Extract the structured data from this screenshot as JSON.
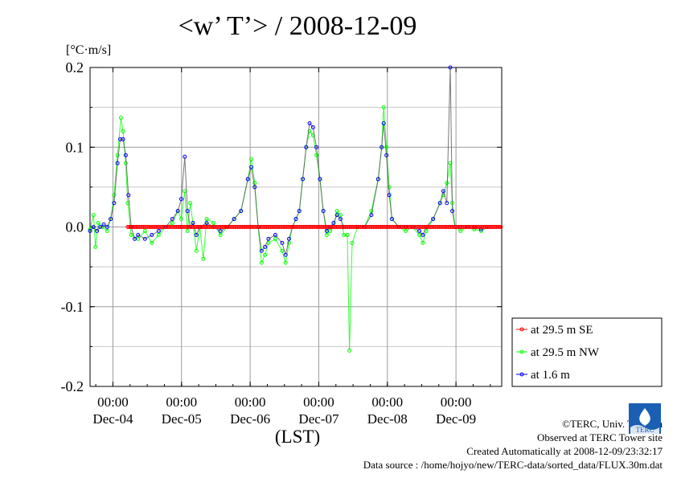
{
  "title": "<w’ T’> / 2008-12-09",
  "chart_data": {
    "type": "line",
    "ylabel": "[°C·m/s]",
    "xlabel": "(LST)",
    "ylim": [
      -0.2,
      0.2
    ],
    "xlim_days": [
      0,
      6
    ],
    "x_start": "2008-12-03 16:00",
    "x_end": "2008-12-09 23:59",
    "yticks": [
      "0.2",
      "0.1",
      "0.0",
      "-0.1",
      "-0.2"
    ],
    "xticks": [
      {
        "time": "00:00",
        "date": "Dec-04"
      },
      {
        "time": "00:00",
        "date": "Dec-05"
      },
      {
        "time": "00:00",
        "date": "Dec-06"
      },
      {
        "time": "00:00",
        "date": "Dec-07"
      },
      {
        "time": "00:00",
        "date": "Dec-08"
      },
      {
        "time": "00:00",
        "date": "Dec-09"
      }
    ],
    "grid": true,
    "legend_position": "bottom-right outside",
    "series": [
      {
        "name": "at 29.5 m SE",
        "color": "#ff0000",
        "note": "flat near zero from Dec-04 06:00 onward",
        "points": [
          [
            0.55,
            0
          ],
          [
            6.0,
            0
          ]
        ]
      },
      {
        "name": "at 29.5 m NW",
        "color": "#00ff00",
        "points": [
          [
            0.0,
            -0.003
          ],
          [
            0.05,
            0.015
          ],
          [
            0.08,
            -0.025
          ],
          [
            0.12,
            0.005
          ],
          [
            0.18,
            0.0
          ],
          [
            0.25,
            -0.005
          ],
          [
            0.3,
            0.01
          ],
          [
            0.35,
            0.04
          ],
          [
            0.4,
            0.09
          ],
          [
            0.45,
            0.137
          ],
          [
            0.48,
            0.12
          ],
          [
            0.52,
            0.08
          ],
          [
            0.55,
            0.03
          ],
          [
            0.6,
            -0.01
          ],
          [
            0.7,
            -0.015
          ],
          [
            0.8,
            -0.005
          ],
          [
            0.9,
            -0.02
          ],
          [
            1.0,
            -0.01
          ],
          [
            1.1,
            0.0
          ],
          [
            1.2,
            0.005
          ],
          [
            1.28,
            0.02
          ],
          [
            1.33,
            0.01
          ],
          [
            1.38,
            0.045
          ],
          [
            1.42,
            -0.005
          ],
          [
            1.46,
            0.03
          ],
          [
            1.5,
            0.005
          ],
          [
            1.55,
            -0.03
          ],
          [
            1.6,
            0.0
          ],
          [
            1.65,
            -0.04
          ],
          [
            1.7,
            0.01
          ],
          [
            1.8,
            0.005
          ],
          [
            1.9,
            -0.01
          ],
          [
            2.0,
            0.0
          ],
          [
            2.1,
            0.01
          ],
          [
            2.2,
            0.02
          ],
          [
            2.3,
            0.06
          ],
          [
            2.35,
            0.085
          ],
          [
            2.4,
            0.055
          ],
          [
            2.45,
            0.0
          ],
          [
            2.5,
            -0.045
          ],
          [
            2.55,
            -0.035
          ],
          [
            2.6,
            -0.02
          ],
          [
            2.7,
            -0.015
          ],
          [
            2.8,
            -0.03
          ],
          [
            2.85,
            -0.045
          ],
          [
            2.9,
            -0.02
          ],
          [
            2.95,
            0.0
          ],
          [
            3.0,
            0.01
          ],
          [
            3.05,
            0.02
          ],
          [
            3.1,
            0.06
          ],
          [
            3.15,
            0.1
          ],
          [
            3.2,
            0.12
          ],
          [
            3.25,
            0.115
          ],
          [
            3.3,
            0.09
          ],
          [
            3.35,
            0.06
          ],
          [
            3.4,
            0.02
          ],
          [
            3.45,
            -0.01
          ],
          [
            3.5,
            -0.005
          ],
          [
            3.55,
            0.0
          ],
          [
            3.6,
            0.02
          ],
          [
            3.65,
            0.015
          ],
          [
            3.7,
            -0.01
          ],
          [
            3.75,
            -0.01
          ],
          [
            3.78,
            -0.155
          ],
          [
            3.82,
            -0.02
          ],
          [
            3.9,
            0.0
          ],
          [
            4.0,
            0.0
          ],
          [
            4.1,
            0.02
          ],
          [
            4.2,
            0.06
          ],
          [
            4.25,
            0.1
          ],
          [
            4.28,
            0.15
          ],
          [
            4.32,
            0.1
          ],
          [
            4.36,
            0.05
          ],
          [
            4.4,
            0.01
          ],
          [
            4.5,
            0.0
          ],
          [
            4.6,
            -0.005
          ],
          [
            4.7,
            0.0
          ],
          [
            4.8,
            -0.01
          ],
          [
            4.85,
            -0.02
          ],
          [
            4.9,
            -0.005
          ],
          [
            5.0,
            0.01
          ],
          [
            5.1,
            0.03
          ],
          [
            5.15,
            0.04
          ],
          [
            5.2,
            0.055
          ],
          [
            5.25,
            0.08
          ],
          [
            5.28,
            0.03
          ],
          [
            5.32,
            0.0
          ],
          [
            5.4,
            -0.005
          ],
          [
            5.5,
            0.0
          ],
          [
            5.6,
            -0.003
          ],
          [
            5.7,
            -0.005
          ],
          [
            5.8,
            0.0
          ]
        ]
      },
      {
        "name": "at 1.6 m",
        "color": "#0000ff",
        "points": [
          [
            0.0,
            -0.005
          ],
          [
            0.05,
            0.0
          ],
          [
            0.1,
            -0.005
          ],
          [
            0.15,
            0.0
          ],
          [
            0.2,
            0.003
          ],
          [
            0.25,
            0.0
          ],
          [
            0.3,
            0.01
          ],
          [
            0.35,
            0.03
          ],
          [
            0.4,
            0.08
          ],
          [
            0.44,
            0.11
          ],
          [
            0.48,
            0.11
          ],
          [
            0.52,
            0.09
          ],
          [
            0.56,
            0.04
          ],
          [
            0.6,
            0.0
          ],
          [
            0.65,
            -0.015
          ],
          [
            0.7,
            -0.01
          ],
          [
            0.8,
            -0.015
          ],
          [
            0.9,
            -0.01
          ],
          [
            1.0,
            -0.005
          ],
          [
            1.1,
            0.0
          ],
          [
            1.2,
            0.01
          ],
          [
            1.28,
            0.02
          ],
          [
            1.33,
            0.035
          ],
          [
            1.38,
            0.088
          ],
          [
            1.42,
            0.02
          ],
          [
            1.46,
            0.0
          ],
          [
            1.5,
            0.005
          ],
          [
            1.55,
            -0.01
          ],
          [
            1.6,
            0.0
          ],
          [
            1.7,
            0.005
          ],
          [
            1.8,
            0.0
          ],
          [
            1.9,
            -0.005
          ],
          [
            2.0,
            0.0
          ],
          [
            2.1,
            0.01
          ],
          [
            2.2,
            0.02
          ],
          [
            2.3,
            0.06
          ],
          [
            2.35,
            0.075
          ],
          [
            2.4,
            0.05
          ],
          [
            2.45,
            0.0
          ],
          [
            2.5,
            -0.03
          ],
          [
            2.55,
            -0.025
          ],
          [
            2.6,
            -0.015
          ],
          [
            2.7,
            -0.01
          ],
          [
            2.8,
            -0.02
          ],
          [
            2.85,
            -0.035
          ],
          [
            2.9,
            -0.015
          ],
          [
            2.95,
            0.0
          ],
          [
            3.0,
            0.01
          ],
          [
            3.05,
            0.02
          ],
          [
            3.1,
            0.06
          ],
          [
            3.15,
            0.1
          ],
          [
            3.2,
            0.13
          ],
          [
            3.25,
            0.125
          ],
          [
            3.3,
            0.1
          ],
          [
            3.35,
            0.06
          ],
          [
            3.4,
            0.02
          ],
          [
            3.45,
            -0.005
          ],
          [
            3.5,
            0.0
          ],
          [
            3.55,
            0.005
          ],
          [
            3.6,
            0.015
          ],
          [
            3.65,
            0.01
          ],
          [
            3.7,
            0.0
          ],
          [
            3.8,
            0.0
          ],
          [
            3.9,
            0.0
          ],
          [
            4.0,
            0.0
          ],
          [
            4.1,
            0.015
          ],
          [
            4.2,
            0.06
          ],
          [
            4.25,
            0.1
          ],
          [
            4.28,
            0.13
          ],
          [
            4.32,
            0.09
          ],
          [
            4.36,
            0.04
          ],
          [
            4.4,
            0.01
          ],
          [
            4.5,
            0.0
          ],
          [
            4.6,
            0.0
          ],
          [
            4.7,
            0.0
          ],
          [
            4.8,
            -0.005
          ],
          [
            4.85,
            -0.01
          ],
          [
            4.9,
            0.0
          ],
          [
            5.0,
            0.01
          ],
          [
            5.1,
            0.03
          ],
          [
            5.15,
            0.045
          ],
          [
            5.2,
            0.03
          ],
          [
            5.25,
            0.2
          ],
          [
            5.28,
            0.02
          ],
          [
            5.32,
            0.0
          ],
          [
            5.4,
            0.0
          ],
          [
            5.5,
            0.0
          ],
          [
            5.6,
            0.0
          ],
          [
            5.7,
            -0.003
          ],
          [
            5.8,
            0.0
          ]
        ]
      }
    ]
  },
  "credits": {
    "copyright": "©TERC, Univ. Tsukuba",
    "observed": "Observed at TERC Tower site",
    "created": "Created Automatically at 2008-12-09/23:32:17",
    "source": "Data source : /home/hojyo/new/TERC-data/sorted_data/FLUX.30m.dat"
  },
  "logo_text": "TERC"
}
